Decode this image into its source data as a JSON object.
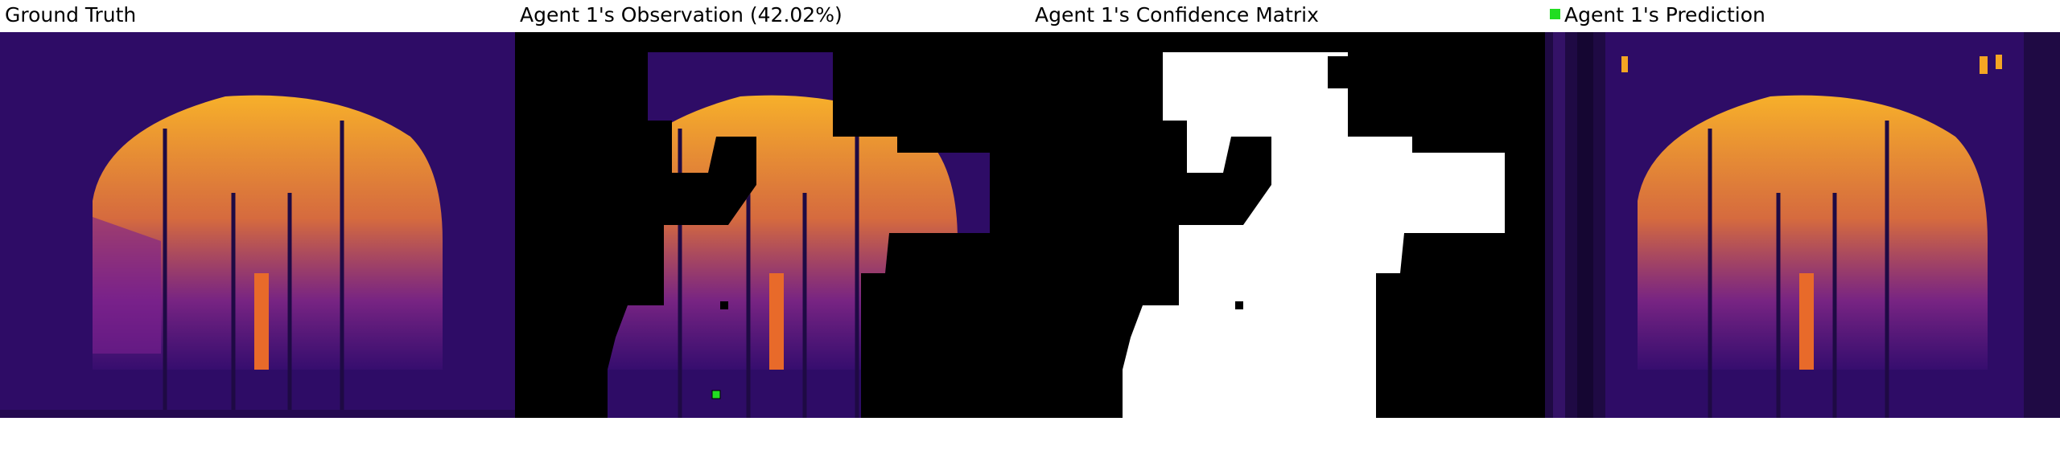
{
  "panels": [
    {
      "title": "Ground Truth"
    },
    {
      "title": "Agent 1's Observation (42.02%)"
    },
    {
      "title": "Agent 1's Confidence Matrix"
    },
    {
      "title": "Agent 1's Prediction"
    }
  ],
  "legend": {
    "color": "#22dd22"
  },
  "colors": {
    "background": "#2a0a5e",
    "hot": "#f5a623",
    "black": "#000000",
    "white": "#ffffff"
  }
}
